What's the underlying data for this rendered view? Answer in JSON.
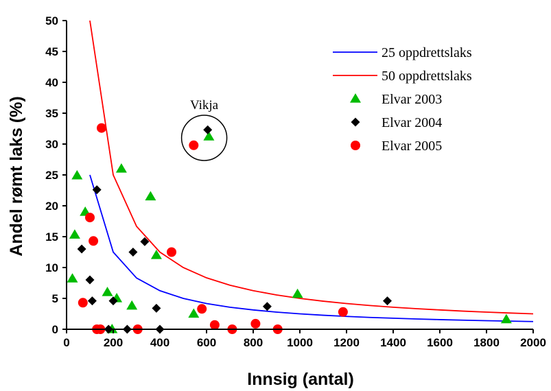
{
  "chart_data": {
    "type": "scatter",
    "xlabel": "Innsig (antal)",
    "ylabel": "Andel rømt laks (%)",
    "xlim": [
      0,
      2000
    ],
    "ylim": [
      0,
      50
    ],
    "xticks": [
      0,
      200,
      400,
      600,
      800,
      1000,
      1200,
      1400,
      1600,
      1800,
      2000
    ],
    "yticks": [
      0,
      5,
      10,
      15,
      20,
      25,
      30,
      35,
      40,
      45,
      50
    ],
    "legend_position": "top-right",
    "grid": false,
    "lines": [
      {
        "name": "25 oppdrettslaks",
        "color": "#0000ff",
        "x": [
          100,
          200,
          300,
          400,
          500,
          600,
          700,
          800,
          900,
          1000,
          1100,
          1200,
          1300,
          1400,
          1500,
          1600,
          1700,
          1800,
          1900,
          2000
        ],
        "y": [
          25,
          12.5,
          8.3,
          6.25,
          5,
          4.17,
          3.57,
          3.13,
          2.78,
          2.5,
          2.27,
          2.08,
          1.92,
          1.79,
          1.67,
          1.56,
          1.47,
          1.39,
          1.32,
          1.25
        ]
      },
      {
        "name": "50 oppdrettslaks",
        "color": "#ff0000",
        "x": [
          100,
          200,
          300,
          400,
          500,
          600,
          700,
          800,
          900,
          1000,
          1100,
          1200,
          1300,
          1400,
          1500,
          1600,
          1700,
          1800,
          1900,
          2000
        ],
        "y": [
          50,
          25,
          16.67,
          12.5,
          10,
          8.33,
          7.14,
          6.25,
          5.56,
          5,
          4.55,
          4.17,
          3.85,
          3.57,
          3.33,
          3.13,
          2.94,
          2.78,
          2.63,
          2.5
        ]
      }
    ],
    "series": [
      {
        "name": "Elvar 2003",
        "marker": "triangle",
        "color": "#00bb00",
        "points": [
          {
            "x": 25,
            "y": 8.2
          },
          {
            "x": 35,
            "y": 15.3
          },
          {
            "x": 45,
            "y": 24.9
          },
          {
            "x": 80,
            "y": 19
          },
          {
            "x": 175,
            "y": 6
          },
          {
            "x": 195,
            "y": 0
          },
          {
            "x": 215,
            "y": 5
          },
          {
            "x": 235,
            "y": 26
          },
          {
            "x": 280,
            "y": 3.8
          },
          {
            "x": 360,
            "y": 21.5
          },
          {
            "x": 385,
            "y": 12
          },
          {
            "x": 545,
            "y": 2.5
          },
          {
            "x": 610,
            "y": 31.2
          },
          {
            "x": 990,
            "y": 5.7
          },
          {
            "x": 1885,
            "y": 1.6
          }
        ]
      },
      {
        "name": "Elvar 2004",
        "marker": "diamond",
        "color": "#000000",
        "points": [
          {
            "x": 65,
            "y": 13
          },
          {
            "x": 100,
            "y": 8
          },
          {
            "x": 110,
            "y": 4.6
          },
          {
            "x": 130,
            "y": 22.6
          },
          {
            "x": 180,
            "y": 0
          },
          {
            "x": 200,
            "y": 4.6
          },
          {
            "x": 260,
            "y": 0
          },
          {
            "x": 285,
            "y": 12.5
          },
          {
            "x": 335,
            "y": 14.2
          },
          {
            "x": 385,
            "y": 3.4
          },
          {
            "x": 400,
            "y": 0
          },
          {
            "x": 605,
            "y": 32.3
          },
          {
            "x": 860,
            "y": 3.7
          },
          {
            "x": 1375,
            "y": 4.6
          }
        ]
      },
      {
        "name": "Elvar 2005",
        "marker": "circle",
        "color": "#ff0000",
        "points": [
          {
            "x": 70,
            "y": 4.3
          },
          {
            "x": 100,
            "y": 18.1
          },
          {
            "x": 115,
            "y": 14.3
          },
          {
            "x": 130,
            "y": 0
          },
          {
            "x": 145,
            "y": 0
          },
          {
            "x": 150,
            "y": 32.6
          },
          {
            "x": 305,
            "y": 0
          },
          {
            "x": 450,
            "y": 12.5
          },
          {
            "x": 545,
            "y": 29.8
          },
          {
            "x": 580,
            "y": 3.3
          },
          {
            "x": 635,
            "y": 0.7
          },
          {
            "x": 710,
            "y": 0
          },
          {
            "x": 810,
            "y": 0.9
          },
          {
            "x": 905,
            "y": 0
          },
          {
            "x": 1185,
            "y": 2.8
          }
        ]
      }
    ],
    "annotations": [
      {
        "text": "Vikja",
        "x": 590,
        "y": 31,
        "style": "circle"
      }
    ]
  }
}
